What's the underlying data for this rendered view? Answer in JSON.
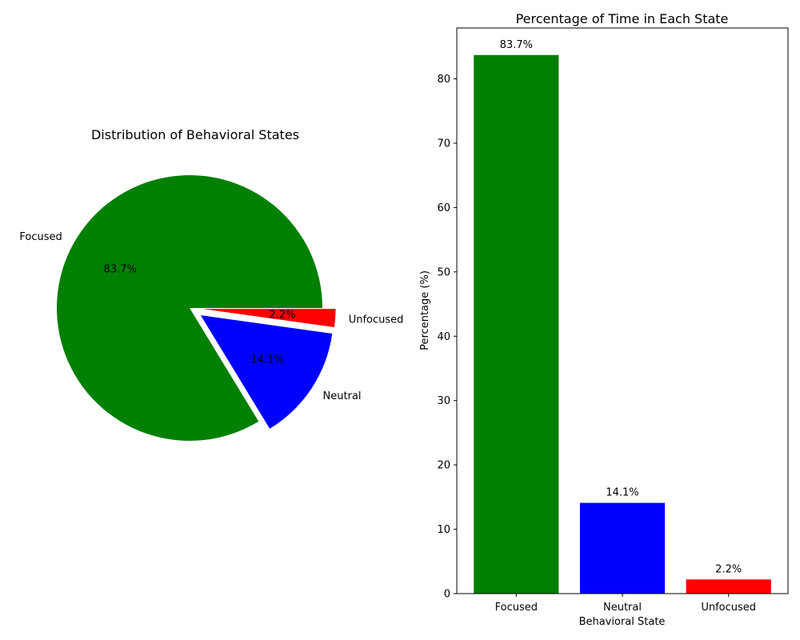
{
  "chart_data": [
    {
      "type": "pie",
      "title": "Distribution of Behavioral States",
      "labels": [
        "Focused",
        "Neutral",
        "Unfocused"
      ],
      "values": [
        83.7,
        14.1,
        2.2
      ],
      "pct_labels": [
        "83.7%",
        "14.1%",
        "2.2%"
      ],
      "colors": [
        "#008000",
        "#0000ff",
        "#ff0000"
      ],
      "exploded": [
        false,
        true,
        true
      ]
    },
    {
      "type": "bar",
      "title": "Percentage of Time in Each State",
      "xlabel": "Behavioral State",
      "ylabel": "Percentage (%)",
      "categories": [
        "Focused",
        "Neutral",
        "Unfocused"
      ],
      "values": [
        83.7,
        14.1,
        2.2
      ],
      "value_labels": [
        "83.7%",
        "14.1%",
        "2.2%"
      ],
      "colors": [
        "#008000",
        "#0000ff",
        "#ff0000"
      ],
      "ylim": [
        0,
        87.9
      ],
      "yticks": [
        0,
        10,
        20,
        30,
        40,
        50,
        60,
        70,
        80
      ],
      "grid": false
    }
  ]
}
